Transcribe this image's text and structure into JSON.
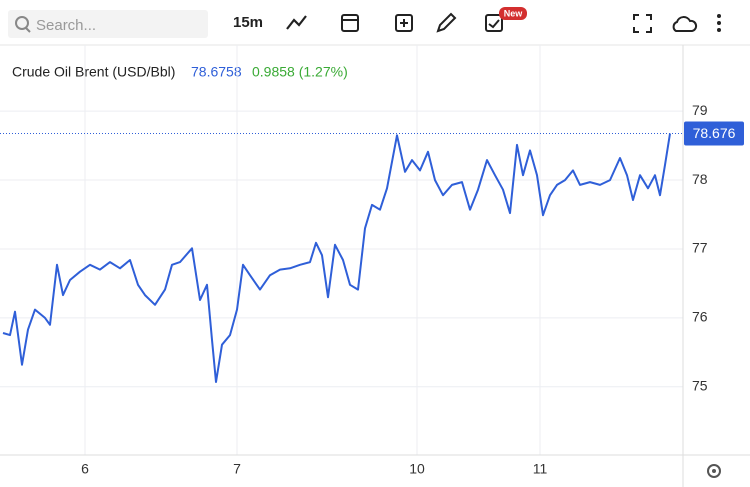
{
  "toolbar": {
    "search_placeholder": "Search...",
    "interval": "15m",
    "badge": "New"
  },
  "chart_data": {
    "type": "line",
    "title": "Crude Oil Brent (USD/Bbl)",
    "price": 78.6758,
    "change": "0.9858 (1.27%)",
    "last_value": 78.676,
    "x": [
      3,
      10,
      15,
      22,
      28,
      35,
      45,
      50,
      57,
      63,
      70,
      80,
      90,
      100,
      110,
      120,
      130,
      138,
      145,
      155,
      165,
      172,
      180,
      192,
      200,
      207,
      212,
      216,
      222,
      230,
      237,
      243,
      250,
      260,
      270,
      280,
      290,
      300,
      310,
      316,
      322,
      328,
      335,
      343,
      350,
      358,
      365,
      372,
      380,
      387,
      397,
      405,
      412,
      420,
      428,
      435,
      443,
      452,
      462,
      470,
      478,
      487,
      495,
      503,
      510,
      517,
      523,
      530,
      537,
      543,
      550,
      557,
      565,
      573,
      580,
      590,
      600,
      610,
      620,
      627,
      633,
      640,
      648,
      655,
      660,
      665,
      670
    ],
    "series": [
      {
        "name": "Crude Oil Brent (USD/Bbl)",
        "color": "#2f5fd8",
        "values": [
          75.78,
          75.75,
          76.09,
          75.32,
          75.83,
          76.12,
          76.0,
          75.9,
          76.77,
          76.33,
          76.55,
          76.67,
          76.77,
          76.7,
          76.81,
          76.72,
          76.84,
          76.48,
          76.33,
          76.19,
          76.41,
          76.77,
          76.81,
          77.01,
          76.26,
          76.48,
          75.68,
          75.07,
          75.61,
          75.75,
          76.12,
          76.77,
          76.62,
          76.41,
          76.62,
          76.7,
          76.72,
          76.77,
          76.81,
          77.09,
          76.91,
          76.3,
          77.06,
          76.84,
          76.48,
          76.41,
          77.3,
          77.64,
          77.57,
          77.88,
          78.65,
          78.12,
          78.29,
          78.14,
          78.41,
          78.0,
          77.78,
          77.93,
          77.97,
          77.57,
          77.86,
          78.29,
          78.07,
          77.86,
          77.52,
          78.51,
          78.07,
          78.43,
          78.07,
          77.49,
          77.78,
          77.93,
          78.0,
          78.14,
          77.93,
          77.97,
          77.93,
          78.0,
          78.32,
          78.07,
          77.71,
          78.07,
          77.88,
          78.07,
          77.78,
          78.22,
          78.676
        ]
      }
    ],
    "xlim": [
      0,
      683
    ],
    "xticks": [
      {
        "value": 85,
        "label": "6"
      },
      {
        "value": 237,
        "label": "7"
      },
      {
        "value": 417,
        "label": "10"
      },
      {
        "value": 540,
        "label": "11"
      }
    ],
    "ylim": [
      74.01,
      79.96
    ],
    "yticks": [
      75,
      76,
      77,
      78,
      79
    ],
    "grid": true
  }
}
